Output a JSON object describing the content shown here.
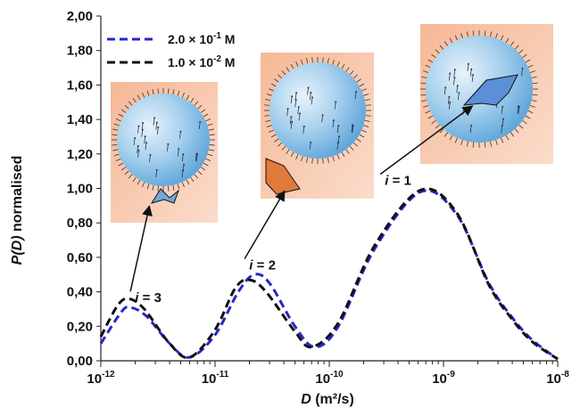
{
  "chart_data": {
    "type": "line",
    "xlabel": "D (m²/s)",
    "ylabel": "P(D) normalised",
    "x_scale": "log",
    "xlim": [
      1e-12,
      1e-08
    ],
    "ylim": [
      0,
      2
    ],
    "y_ticks": [
      "0,00",
      "0,20",
      "0,40",
      "0,60",
      "0,80",
      "1,00",
      "1,20",
      "1,40",
      "1,60",
      "1,80",
      "2,00"
    ],
    "x_ticks": [
      {
        "base": "10",
        "exp": "-12"
      },
      {
        "base": "10",
        "exp": "-11"
      },
      {
        "base": "10",
        "exp": "-10"
      },
      {
        "base": "10",
        "exp": "-9"
      },
      {
        "base": "10",
        "exp": "-8"
      }
    ],
    "legend_position": "top-left",
    "series": [
      {
        "name": "2.0 × 10⁻¹ M",
        "legend": {
          "mant": "2.0 × 10",
          "exp": "-1",
          "unit": " M"
        },
        "color": "#2727c9",
        "x": [
          1e-12,
          1.5e-12,
          1.8e-12,
          2.5e-12,
          4e-12,
          6e-12,
          1e-11,
          1.6e-11,
          2.2e-11,
          3e-11,
          5e-11,
          7.5e-11,
          1.2e-10,
          2.5e-10,
          6.3e-10,
          1.3e-09,
          2.5e-09,
          4e-09,
          6e-09,
          1e-08
        ],
        "y": [
          0.1,
          0.28,
          0.31,
          0.26,
          0.1,
          0.02,
          0.15,
          0.4,
          0.5,
          0.45,
          0.2,
          0.08,
          0.2,
          0.65,
          0.98,
          0.85,
          0.45,
          0.25,
          0.12,
          0.01
        ]
      },
      {
        "name": "1.0 × 10⁻² M",
        "legend": {
          "mant": "1.0 × 10",
          "exp": "-2",
          "unit": " M"
        },
        "color": "#111111",
        "x": [
          1e-12,
          1.4e-12,
          1.75e-12,
          2.4e-12,
          4e-12,
          6e-12,
          1e-11,
          1.5e-11,
          2e-11,
          2.8e-11,
          5e-11,
          7e-11,
          1.2e-10,
          2.5e-10,
          6.3e-10,
          1.3e-09,
          2.5e-09,
          4e-09,
          6e-09,
          1e-08
        ],
        "y": [
          0.14,
          0.32,
          0.36,
          0.3,
          0.1,
          0.02,
          0.18,
          0.42,
          0.47,
          0.4,
          0.17,
          0.08,
          0.22,
          0.67,
          0.99,
          0.86,
          0.44,
          0.24,
          0.11,
          0.01
        ]
      }
    ],
    "annotations": [
      {
        "id": "i3",
        "prefix": "i",
        "value": " = 3",
        "x": 2.6e-12,
        "y": 0.34
      },
      {
        "id": "i2",
        "prefix": "i",
        "value": " = 2",
        "x": 2.6e-11,
        "y": 0.53
      },
      {
        "id": "i1",
        "prefix": "i",
        "value": " = 1",
        "x": 4e-10,
        "y": 1.02
      }
    ]
  }
}
